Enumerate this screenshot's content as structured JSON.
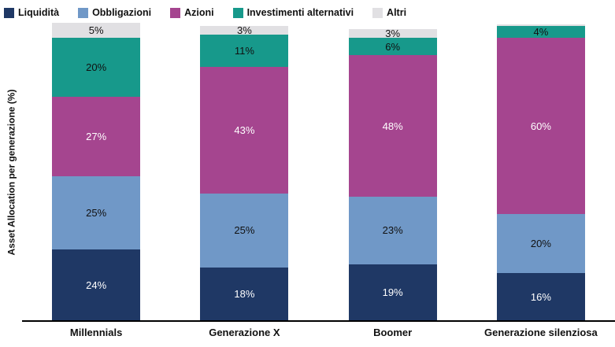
{
  "chart_data": {
    "type": "bar",
    "stacked": true,
    "title": "",
    "xlabel": "",
    "ylabel": "Asset Allocation per generazione (%)",
    "value_suffix": "%",
    "ylim": [
      0,
      101
    ],
    "grid": false,
    "legend_position": "top",
    "min_label_value": 2,
    "categories": [
      "Millennials",
      "Generazione X",
      "Boomer",
      "Generazione silenziosa"
    ],
    "series": [
      {
        "name": "Liquidità",
        "color": "#1f3865",
        "label_color": "#ffffff",
        "values": [
          24,
          18,
          19,
          16
        ]
      },
      {
        "name": "Obbligazioni",
        "color": "#7098c7",
        "label_color": "#111111",
        "values": [
          25,
          25,
          23,
          20
        ]
      },
      {
        "name": "Azioni",
        "color": "#a5458f",
        "label_color": "#ffffff",
        "values": [
          27,
          43,
          48,
          60
        ]
      },
      {
        "name": "Investimenti alternativi",
        "color": "#17998b",
        "label_color": "#111111",
        "values": [
          20,
          11,
          6,
          4
        ]
      },
      {
        "name": "Altri",
        "color": "#e1e0e3",
        "label_color": "#111111",
        "values": [
          5,
          3,
          3,
          0.5
        ]
      }
    ]
  }
}
